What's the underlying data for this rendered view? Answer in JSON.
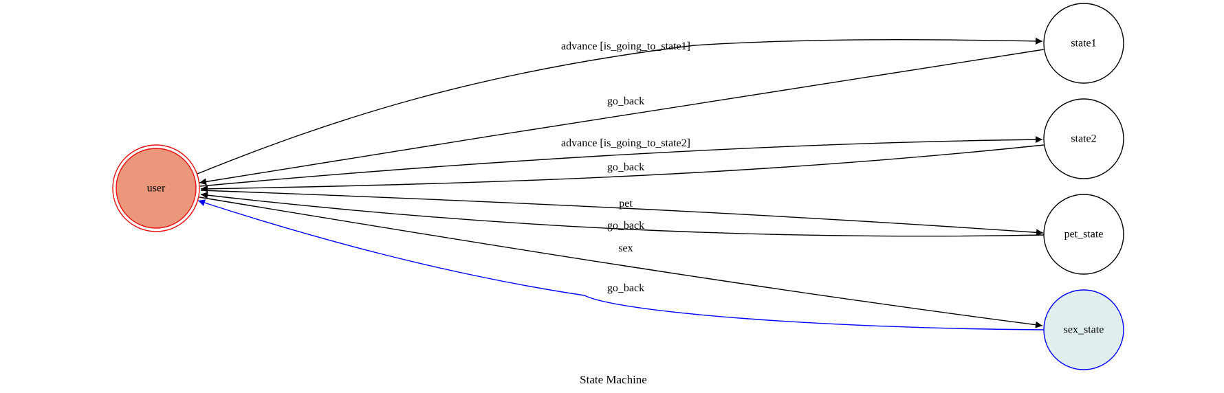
{
  "caption": "State Machine",
  "colors": {
    "user_fill": "#ea977b",
    "user_stroke": "#e81010",
    "highlight_fill": "#e0eeee",
    "highlight_stroke": "#0000ff",
    "default_fill": "#ffffff",
    "default_stroke": "#000000",
    "edge": "#000000",
    "highlight_edge": "#0000ff"
  },
  "nodes": {
    "user": {
      "label": "user"
    },
    "state1": {
      "label": "state1"
    },
    "state2": {
      "label": "state2"
    },
    "pet_state": {
      "label": "pet_state"
    },
    "sex_state": {
      "label": "sex_state"
    }
  },
  "edges": [
    {
      "id": "user-to-state1",
      "from": "user",
      "to": "state1",
      "label": "advance [is_going_to_state1]"
    },
    {
      "id": "state1-to-user",
      "from": "state1",
      "to": "user",
      "label": "go_back"
    },
    {
      "id": "user-to-state2",
      "from": "user",
      "to": "state2",
      "label": "advance [is_going_to_state2]"
    },
    {
      "id": "state2-to-user",
      "from": "state2",
      "to": "user",
      "label": "go_back"
    },
    {
      "id": "user-to-pet-state",
      "from": "user",
      "to": "pet_state",
      "label": "pet"
    },
    {
      "id": "pet-state-to-user",
      "from": "pet_state",
      "to": "user",
      "label": "go_back"
    },
    {
      "id": "user-to-sex-state",
      "from": "user",
      "to": "sex_state",
      "label": "sex"
    },
    {
      "id": "sex-state-to-user",
      "from": "sex_state",
      "to": "user",
      "label": "go_back",
      "highlight": true
    }
  ]
}
